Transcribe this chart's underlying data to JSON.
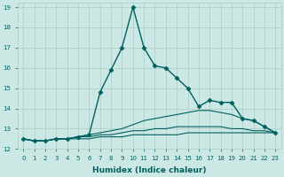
{
  "xlabel": "Humidex (Indice chaleur)",
  "background_color": "#cce8e4",
  "grid_color": "#aaccc8",
  "line_color": "#006060",
  "xlim": [
    -0.5,
    23.5
  ],
  "ylim": [
    12,
    19.2
  ],
  "yticks": [
    12,
    13,
    14,
    15,
    16,
    17,
    18,
    19
  ],
  "xticks": [
    0,
    1,
    2,
    3,
    4,
    5,
    6,
    7,
    8,
    9,
    10,
    11,
    12,
    13,
    14,
    15,
    16,
    17,
    18,
    19,
    20,
    21,
    22,
    23
  ],
  "series": [
    {
      "x": [
        0,
        1,
        2,
        3,
        4,
        5,
        6,
        7,
        8,
        9,
        10,
        11,
        12,
        13,
        14,
        15,
        16,
        17,
        18,
        19,
        20,
        21,
        22,
        23
      ],
      "y": [
        12.5,
        12.4,
        12.4,
        12.5,
        12.5,
        12.6,
        12.7,
        14.8,
        15.9,
        17.0,
        19.0,
        17.0,
        16.1,
        16.0,
        15.5,
        15.0,
        14.1,
        14.4,
        14.3,
        14.3,
        13.5,
        13.4,
        13.1,
        12.8
      ],
      "marker": "D",
      "markersize": 2.5,
      "linewidth": 1.0,
      "linestyle": "-",
      "zorder": 4
    },
    {
      "x": [
        0,
        1,
        2,
        3,
        4,
        5,
        6,
        7,
        8,
        9,
        10,
        11,
        12,
        13,
        14,
        15,
        16,
        17,
        18,
        19,
        20,
        21,
        22,
        23
      ],
      "y": [
        12.5,
        12.4,
        12.4,
        12.5,
        12.5,
        12.6,
        12.7,
        12.8,
        12.9,
        13.0,
        13.2,
        13.4,
        13.5,
        13.6,
        13.7,
        13.8,
        13.9,
        13.9,
        13.8,
        13.7,
        13.5,
        13.4,
        13.1,
        12.8
      ],
      "marker": null,
      "markersize": 0,
      "linewidth": 0.8,
      "linestyle": "-",
      "zorder": 2
    },
    {
      "x": [
        0,
        1,
        2,
        3,
        4,
        5,
        6,
        7,
        8,
        9,
        10,
        11,
        12,
        13,
        14,
        15,
        16,
        17,
        18,
        19,
        20,
        21,
        22,
        23
      ],
      "y": [
        12.5,
        12.4,
        12.4,
        12.5,
        12.5,
        12.6,
        12.6,
        12.7,
        12.7,
        12.8,
        12.9,
        12.9,
        13.0,
        13.0,
        13.1,
        13.1,
        13.1,
        13.1,
        13.1,
        13.0,
        13.0,
        12.9,
        12.9,
        12.8
      ],
      "marker": null,
      "markersize": 0,
      "linewidth": 0.8,
      "linestyle": "-",
      "zorder": 2
    },
    {
      "x": [
        0,
        1,
        2,
        3,
        4,
        5,
        6,
        7,
        8,
        9,
        10,
        11,
        12,
        13,
        14,
        15,
        16,
        17,
        18,
        19,
        20,
        21,
        22,
        23
      ],
      "y": [
        12.5,
        12.4,
        12.4,
        12.5,
        12.5,
        12.5,
        12.5,
        12.6,
        12.6,
        12.6,
        12.7,
        12.7,
        12.7,
        12.7,
        12.7,
        12.8,
        12.8,
        12.8,
        12.8,
        12.8,
        12.8,
        12.8,
        12.8,
        12.8
      ],
      "marker": null,
      "markersize": 0,
      "linewidth": 0.8,
      "linestyle": "-",
      "zorder": 2
    }
  ]
}
